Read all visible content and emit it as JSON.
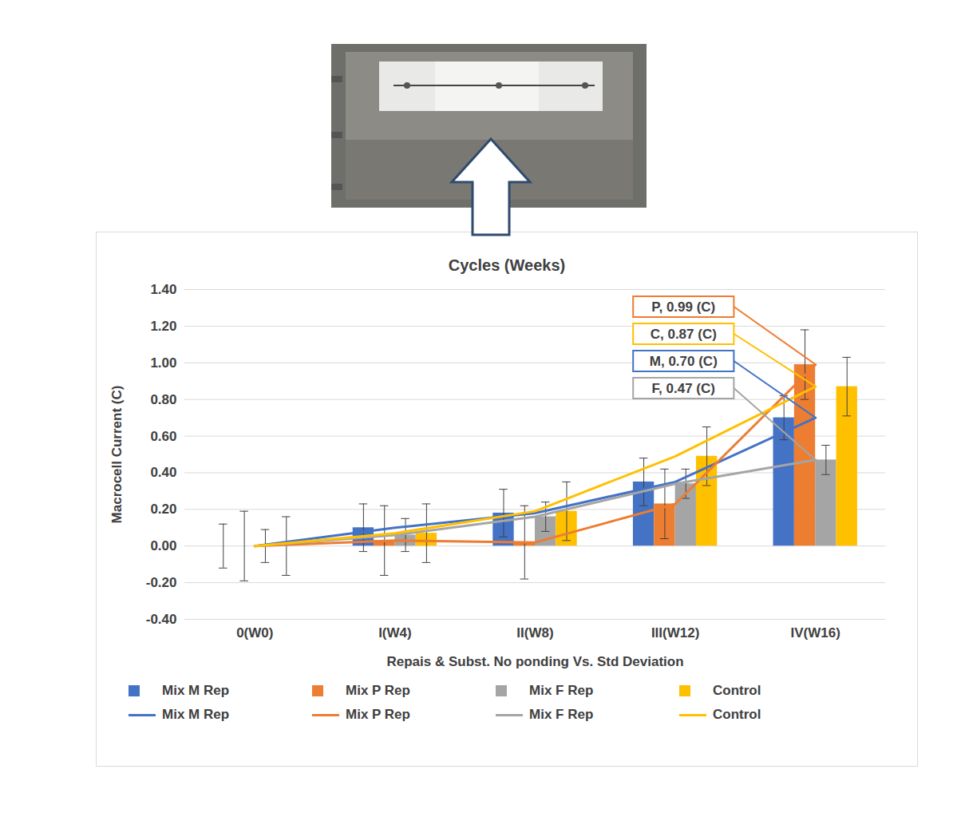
{
  "chart_data": {
    "type": "bar",
    "title": "Cycles (Weeks)",
    "x_label": "Repais & Subst. No ponding Vs. Std Deviation",
    "y_label": "Macrocell Current (C)",
    "categories": [
      "0(W0)",
      "I(W4)",
      "II(W8)",
      "III(W12)",
      "IV(W16)"
    ],
    "series": [
      {
        "name": "Mix M Rep",
        "type": "bar",
        "color": "#4472c4",
        "values": [
          0,
          0.1,
          0.18,
          0.35,
          0.7
        ],
        "error": [
          0.12,
          0.13,
          0.13,
          0.13,
          0.12
        ]
      },
      {
        "name": "Mix P Rep",
        "type": "bar",
        "color": "#ed7d31",
        "values": [
          0,
          0.03,
          0.02,
          0.23,
          0.99
        ],
        "error": [
          0.19,
          0.19,
          0.2,
          0.19,
          0.19
        ]
      },
      {
        "name": "Mix F Rep",
        "type": "bar",
        "color": "#a5a5a5",
        "values": [
          0,
          0.06,
          0.16,
          0.34,
          0.47
        ],
        "error": [
          0.09,
          0.09,
          0.08,
          0.08,
          0.08
        ]
      },
      {
        "name": "Control",
        "type": "bar",
        "color": "#ffc000",
        "values": [
          0,
          0.07,
          0.19,
          0.49,
          0.87
        ],
        "error": [
          0.16,
          0.16,
          0.16,
          0.16,
          0.16
        ]
      },
      {
        "name": "Mix M Rep",
        "type": "line",
        "color": "#4472c4",
        "values": [
          0,
          0.1,
          0.18,
          0.35,
          0.7
        ]
      },
      {
        "name": "Mix P Rep",
        "type": "line",
        "color": "#ed7d31",
        "values": [
          0,
          0.03,
          0.02,
          0.23,
          0.99
        ]
      },
      {
        "name": "Mix F Rep",
        "type": "line",
        "color": "#a5a5a5",
        "values": [
          0,
          0.06,
          0.16,
          0.34,
          0.47
        ]
      },
      {
        "name": "Control",
        "type": "line",
        "color": "#ffc000",
        "values": [
          0,
          0.07,
          0.19,
          0.49,
          0.87
        ]
      }
    ],
    "ylim": [
      -0.4,
      1.4
    ],
    "yticks": [
      {
        "value": -0.4,
        "label": "-0.40"
      },
      {
        "value": -0.2,
        "label": "-0.20"
      },
      {
        "value": 0,
        "label": "0.00"
      },
      {
        "value": 0.2,
        "label": "0.20"
      },
      {
        "value": 0.4,
        "label": "0.40"
      },
      {
        "value": 0.6,
        "label": "0.60"
      },
      {
        "value": 0.8,
        "label": "0.80"
      },
      {
        "value": 1.0,
        "label": "1.00"
      },
      {
        "value": 1.2,
        "label": "1.20"
      },
      {
        "value": 1.4,
        "label": "1.40"
      }
    ],
    "grid": true,
    "legend": "bottom",
    "annotations": [
      {
        "text": "P, 0.99 (C)",
        "series": "Mix P Rep"
      },
      {
        "text": "C, 0.87 (C)",
        "series": "Control"
      },
      {
        "text": "M, 0.70 (C)",
        "series": "Mix M Rep"
      },
      {
        "text": "F, 0.47 (C)",
        "series": "Mix F Rep"
      }
    ]
  }
}
